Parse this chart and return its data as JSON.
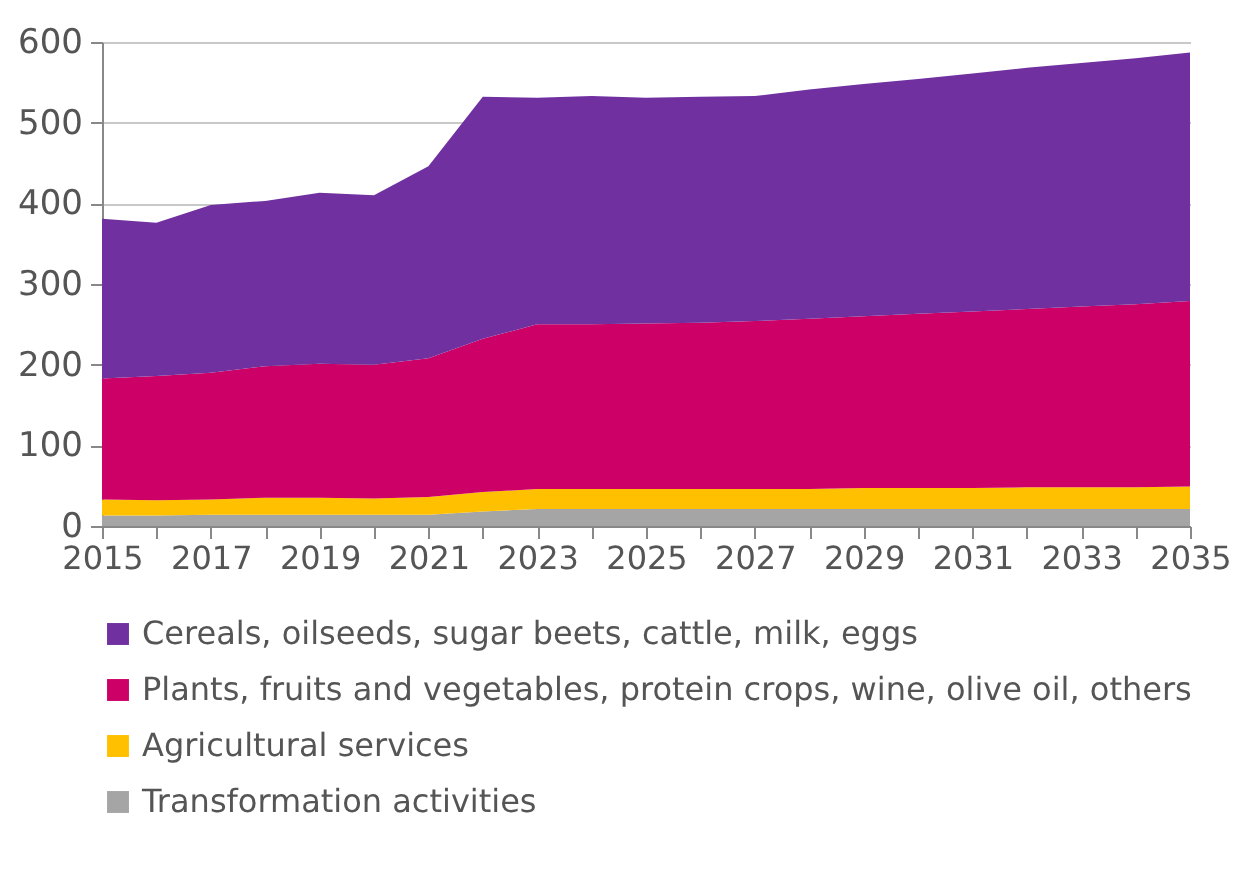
{
  "chart_data": {
    "type": "area",
    "stacked": true,
    "x": [
      2015,
      2016,
      2017,
      2018,
      2019,
      2020,
      2021,
      2022,
      2023,
      2024,
      2025,
      2026,
      2027,
      2028,
      2029,
      2030,
      2031,
      2032,
      2033,
      2034,
      2035
    ],
    "series": [
      {
        "name": "Transformation activities",
        "color": "#a5a5a5",
        "values": [
          13,
          13,
          14,
          14,
          14,
          14,
          14,
          18,
          21,
          21,
          21,
          21,
          21,
          21,
          21,
          21,
          21,
          21,
          21,
          21,
          21
        ]
      },
      {
        "name": "Agricultural services",
        "color": "#ffc000",
        "values": [
          20,
          19,
          19,
          21,
          21,
          20,
          22,
          24,
          25,
          25,
          25,
          25,
          25,
          25,
          26,
          26,
          26,
          27,
          27,
          27,
          28
        ]
      },
      {
        "name": "Plants, fruits and vegetables, protein crops, wine, olive oil, others",
        "color": "#cc0066",
        "values": [
          150,
          154,
          157,
          163,
          166,
          166,
          172,
          190,
          204,
          204,
          205,
          206,
          208,
          211,
          213,
          216,
          219,
          221,
          224,
          227,
          230
        ]
      },
      {
        "name": "Cereals, oilseeds, sugar beets, cattle, milk, eggs",
        "color": "#70309f",
        "values": [
          198,
          190,
          208,
          205,
          212,
          210,
          238,
          300,
          281,
          283,
          280,
          280,
          279,
          284,
          288,
          291,
          295,
          299,
          302,
          305,
          308
        ]
      }
    ],
    "xlim": [
      2015,
      2035
    ],
    "xticks": [
      2015,
      {
        "value": 2016,
        "label": null
      },
      2017,
      {
        "value": 2018,
        "label": null
      },
      2019,
      {
        "value": 2020,
        "label": null
      },
      2021,
      {
        "value": 2022,
        "label": null
      },
      2023,
      {
        "value": 2024,
        "label": null
      },
      2025,
      {
        "value": 2026,
        "label": null
      },
      2027,
      {
        "value": 2028,
        "label": null
      },
      2029,
      {
        "value": 2030,
        "label": null
      },
      2031,
      {
        "value": 2032,
        "label": null
      },
      2033,
      {
        "value": 2034,
        "label": null
      },
      2035
    ],
    "ylim": [
      0,
      600
    ],
    "yticks": [
      0,
      100,
      200,
      300,
      400,
      500,
      600
    ],
    "grid": "y",
    "legend": "bottom"
  }
}
